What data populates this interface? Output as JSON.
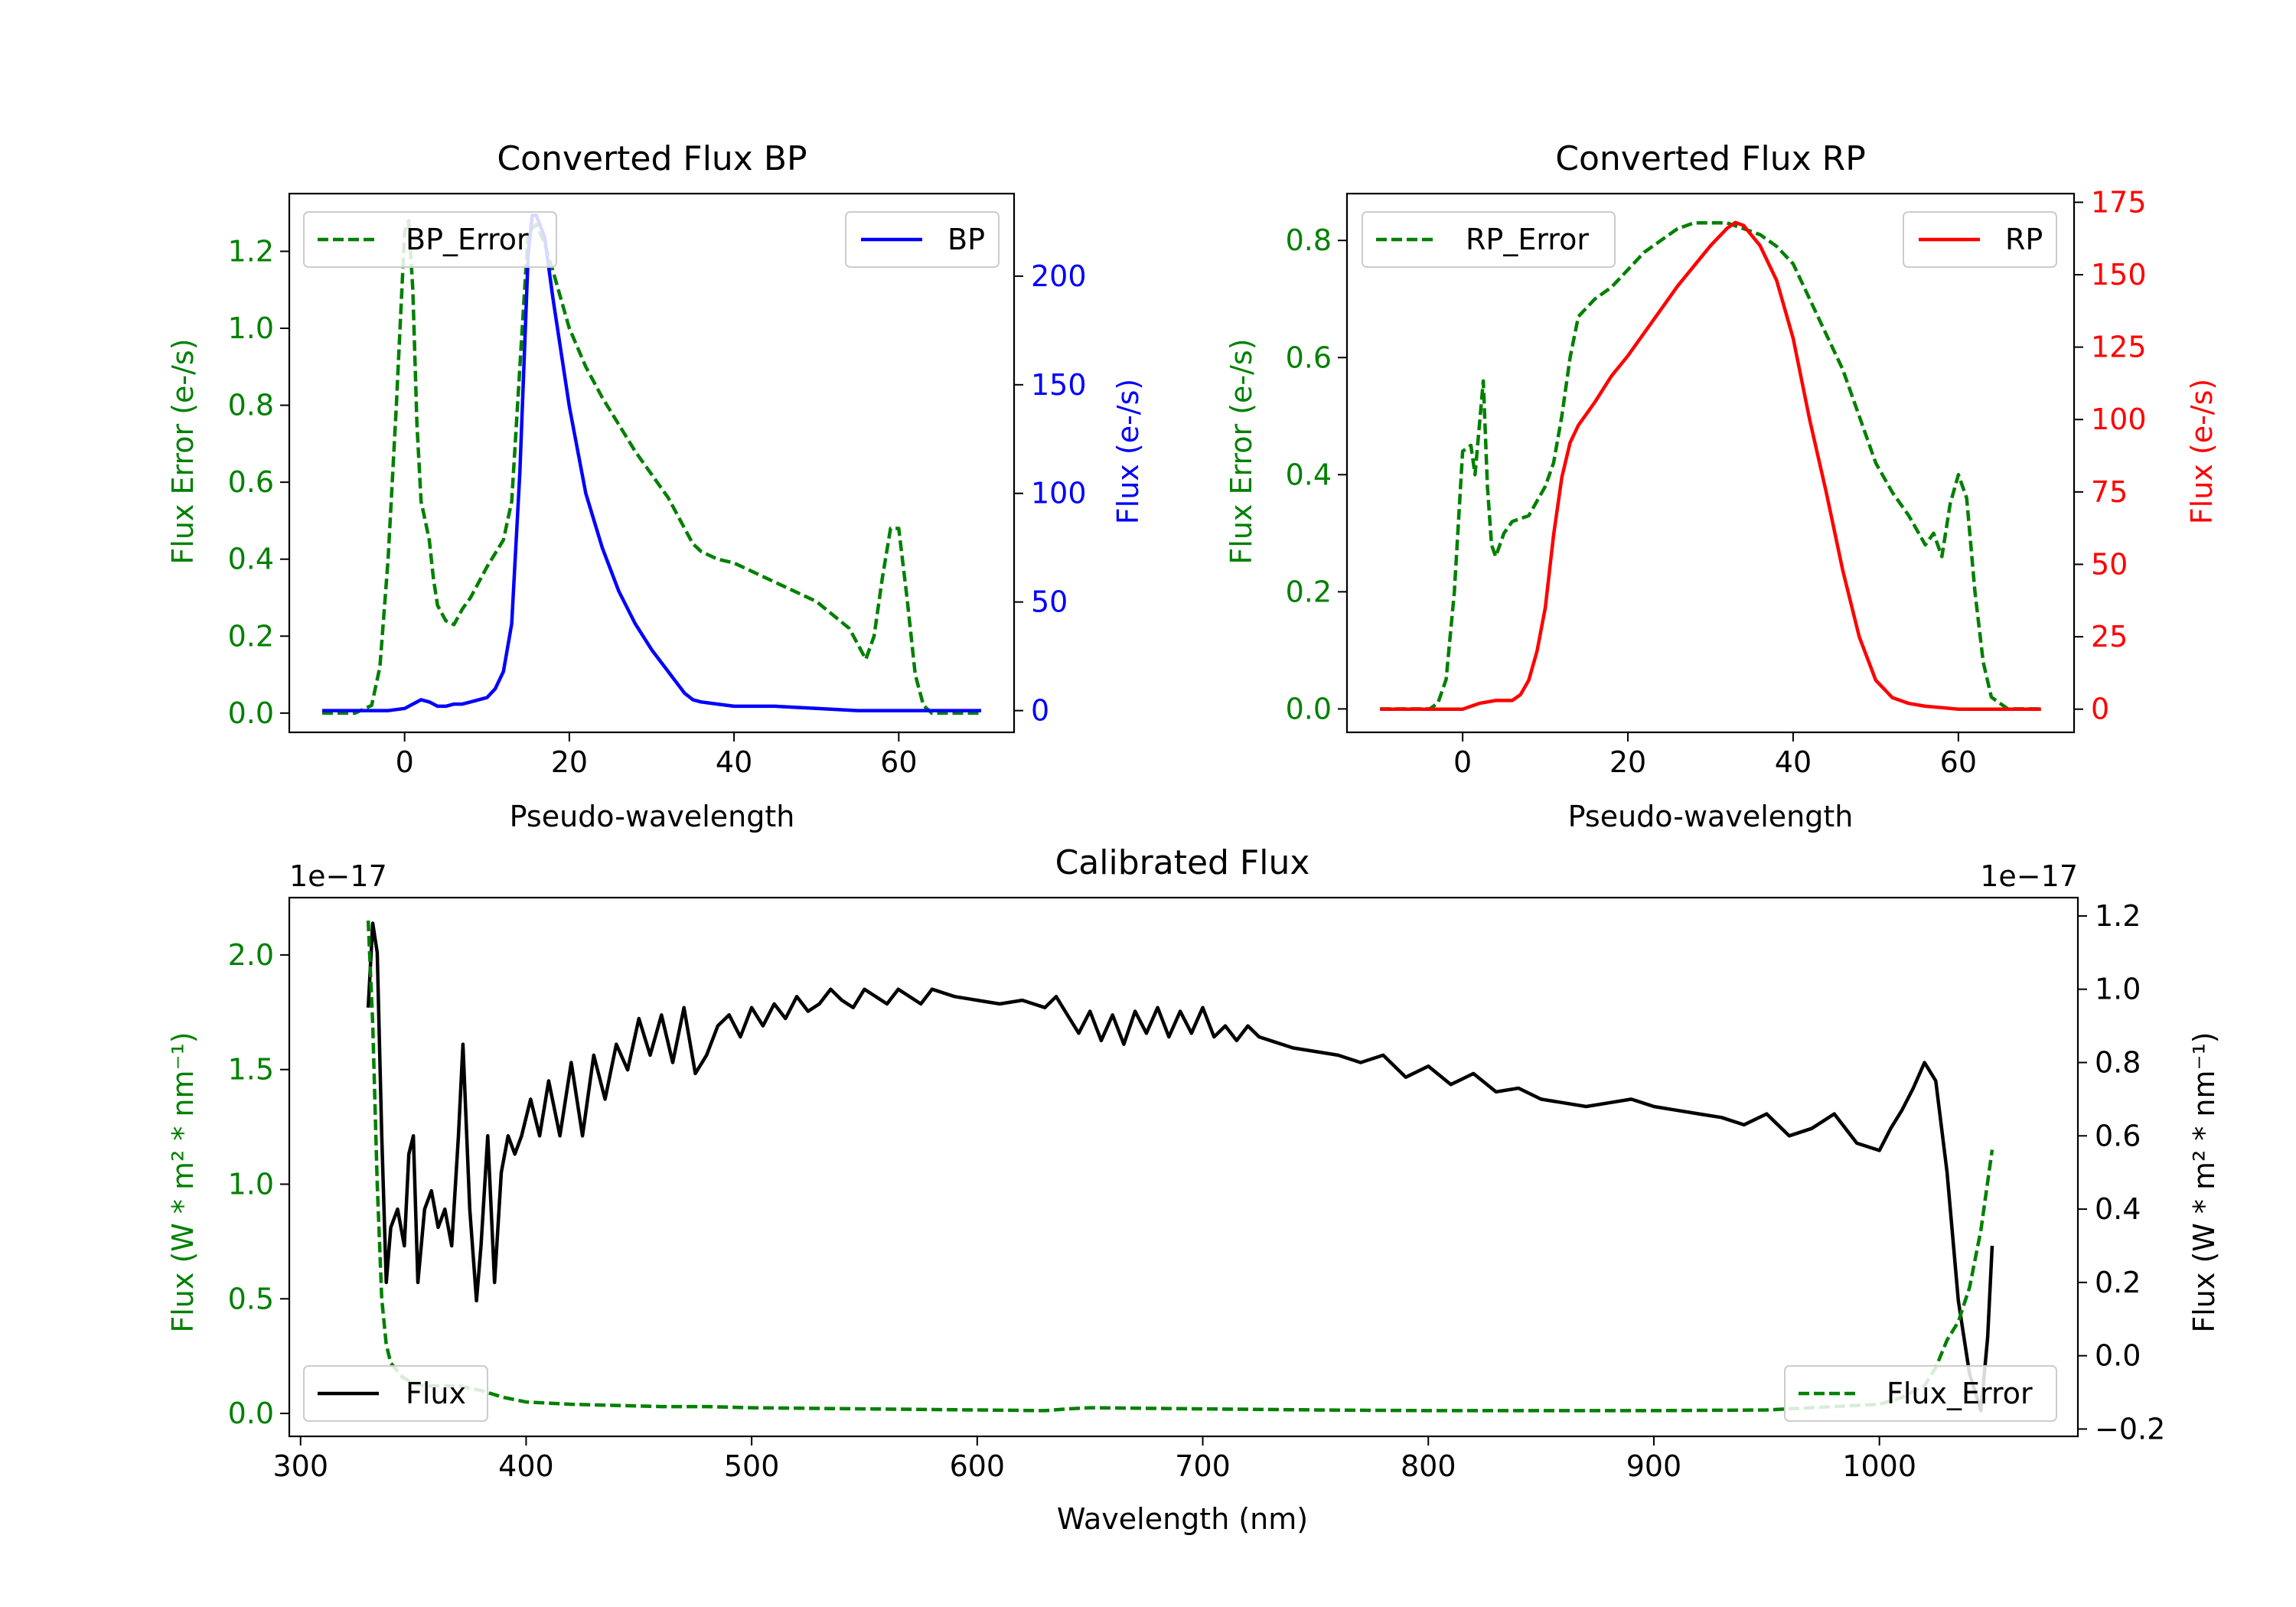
{
  "chart_data": [
    {
      "type": "line",
      "title": "Converted Flux BP",
      "xlabel": "Pseudo-wavelength",
      "xlim": [
        -14,
        74
      ],
      "x_ticks": [
        "0",
        "20",
        "40",
        "60"
      ],
      "left_axis": {
        "label": "Flux Error (e-/s)",
        "color": "#008000",
        "ylim": [
          -0.05,
          1.35
        ],
        "ticks": [
          "0.0",
          "0.2",
          "0.4",
          "0.6",
          "0.8",
          "1.0",
          "1.2"
        ]
      },
      "right_axis": {
        "label": "Flux (e-/s)",
        "color": "#0000ff",
        "ylim": [
          -10,
          238
        ],
        "ticks": [
          "0",
          "50",
          "100",
          "150",
          "200"
        ]
      },
      "legends": {
        "left": "BP_Error",
        "right": "BP"
      },
      "series": [
        {
          "name": "BP_Error",
          "axis": "left",
          "color": "#008000",
          "style": "dashed",
          "x": [
            -10,
            -8,
            -6,
            -4,
            -3,
            -2,
            -1,
            0,
            0.5,
            1,
            1.5,
            2,
            2.5,
            3,
            3.5,
            4,
            4.5,
            5,
            6,
            7,
            8,
            10,
            12,
            13,
            14,
            15,
            16,
            17,
            18,
            20,
            22,
            24,
            26,
            28,
            30,
            32,
            34,
            35,
            36,
            38,
            40,
            45,
            50,
            54,
            56,
            57,
            58,
            59,
            60,
            61,
            62,
            63,
            64,
            66,
            68,
            70
          ],
          "y": [
            0,
            0,
            0,
            0.02,
            0.12,
            0.4,
            0.8,
            1.25,
            1.28,
            1.1,
            0.75,
            0.55,
            0.5,
            0.45,
            0.35,
            0.28,
            0.26,
            0.24,
            0.23,
            0.27,
            0.3,
            0.38,
            0.45,
            0.55,
            0.9,
            1.25,
            1.27,
            1.22,
            1.15,
            1.0,
            0.9,
            0.82,
            0.75,
            0.68,
            0.62,
            0.56,
            0.48,
            0.44,
            0.42,
            0.4,
            0.39,
            0.34,
            0.29,
            0.22,
            0.14,
            0.2,
            0.35,
            0.48,
            0.48,
            0.3,
            0.1,
            0.02,
            0,
            0,
            0,
            0
          ]
        },
        {
          "name": "BP",
          "axis": "right",
          "color": "#0000ff",
          "style": "solid",
          "x": [
            -10,
            -5,
            -2,
            0,
            1,
            2,
            3,
            4,
            5,
            6,
            7,
            8,
            10,
            11,
            12,
            13,
            14,
            15,
            15.5,
            16,
            17,
            18,
            20,
            22,
            24,
            26,
            28,
            30,
            32,
            34,
            35,
            36,
            38,
            40,
            45,
            50,
            55,
            60,
            65,
            70
          ],
          "y": [
            0,
            0,
            0,
            1,
            3,
            5,
            4,
            2,
            2,
            3,
            3,
            4,
            6,
            10,
            18,
            40,
            110,
            210,
            228,
            228,
            218,
            190,
            140,
            100,
            75,
            55,
            40,
            28,
            18,
            8,
            5,
            4,
            3,
            2,
            2,
            1,
            0,
            0,
            0,
            0
          ]
        }
      ]
    },
    {
      "type": "line",
      "title": "Converted Flux RP",
      "xlabel": "Pseudo-wavelength",
      "xlim": [
        -14,
        74
      ],
      "x_ticks": [
        "0",
        "20",
        "40",
        "60"
      ],
      "left_axis": {
        "label": "Flux Error (e-/s)",
        "color": "#008000",
        "ylim": [
          -0.04,
          0.88
        ],
        "ticks": [
          "0.0",
          "0.2",
          "0.4",
          "0.6",
          "0.8"
        ]
      },
      "right_axis": {
        "label": "Flux (e-/s)",
        "color": "#ff0000",
        "ylim": [
          -8,
          178
        ],
        "ticks": [
          "0",
          "25",
          "50",
          "75",
          "100",
          "125",
          "150",
          "175"
        ]
      },
      "legends": {
        "left": "RP_Error",
        "right": "RP"
      },
      "series": [
        {
          "name": "RP_Error",
          "axis": "left",
          "color": "#008000",
          "style": "dashed",
          "x": [
            -10,
            -5,
            -4,
            -3,
            -2,
            -1,
            0,
            1,
            1.5,
            2,
            2.5,
            3,
            3.5,
            4,
            5,
            6,
            8,
            10,
            11,
            12,
            13,
            14,
            16,
            18,
            20,
            22,
            24,
            26,
            28,
            30,
            32,
            34,
            36,
            38,
            40,
            42,
            44,
            46,
            48,
            50,
            52,
            54,
            56,
            57,
            58,
            59,
            60,
            61,
            62,
            63,
            64,
            66,
            68,
            70
          ],
          "y": [
            0,
            0,
            0,
            0.01,
            0.05,
            0.2,
            0.44,
            0.45,
            0.4,
            0.48,
            0.56,
            0.38,
            0.28,
            0.26,
            0.3,
            0.32,
            0.33,
            0.38,
            0.42,
            0.5,
            0.6,
            0.67,
            0.7,
            0.72,
            0.75,
            0.78,
            0.8,
            0.82,
            0.83,
            0.83,
            0.83,
            0.82,
            0.81,
            0.79,
            0.76,
            0.7,
            0.64,
            0.58,
            0.5,
            0.42,
            0.37,
            0.33,
            0.28,
            0.3,
            0.26,
            0.35,
            0.4,
            0.36,
            0.2,
            0.08,
            0.02,
            0,
            0,
            0
          ]
        },
        {
          "name": "RP",
          "axis": "right",
          "color": "#ff0000",
          "style": "solid",
          "x": [
            -10,
            -5,
            -2,
            0,
            2,
            4,
            6,
            7,
            8,
            9,
            10,
            11,
            12,
            13,
            14,
            16,
            18,
            20,
            22,
            24,
            26,
            28,
            30,
            32,
            33,
            34,
            36,
            38,
            40,
            42,
            44,
            46,
            48,
            50,
            52,
            54,
            56,
            58,
            60,
            62,
            65,
            70
          ],
          "y": [
            0,
            0,
            0,
            0,
            2,
            3,
            3,
            5,
            10,
            20,
            35,
            60,
            80,
            92,
            98,
            106,
            115,
            122,
            130,
            138,
            146,
            153,
            160,
            166,
            168,
            167,
            160,
            148,
            128,
            100,
            75,
            48,
            25,
            10,
            4,
            2,
            1,
            0.5,
            0,
            0,
            0,
            0
          ]
        }
      ]
    },
    {
      "type": "line",
      "title": "Calibrated Flux",
      "xlabel": "Wavelength (nm)",
      "xlim": [
        295,
        1088
      ],
      "x_ticks": [
        "300",
        "400",
        "500",
        "600",
        "700",
        "800",
        "900",
        "1000"
      ],
      "left_axis": {
        "label": "Flux (W * m² * nm⁻¹)",
        "color": "#008000",
        "exponent": "1e−17",
        "ylim": [
          -0.1,
          2.25
        ],
        "ticks": [
          "0.0",
          "0.5",
          "1.0",
          "1.5",
          "2.0"
        ]
      },
      "right_axis": {
        "label": "Flux (W * m² * nm⁻¹)",
        "color": "#000000",
        "exponent": "1e−17",
        "ylim": [
          -0.22,
          1.25
        ],
        "ticks": [
          "−0.2",
          "0.0",
          "0.2",
          "0.4",
          "0.6",
          "0.8",
          "1.0",
          "1.2"
        ]
      },
      "legends": {
        "left": "Flux",
        "right": "Flux_Error"
      },
      "series": [
        {
          "name": "Flux",
          "axis": "right",
          "color": "#000000",
          "style": "solid",
          "x": [
            330,
            332,
            334,
            336,
            338,
            340,
            343,
            346,
            348,
            350,
            352,
            355,
            358,
            361,
            364,
            367,
            370,
            372,
            375,
            378,
            380,
            383,
            386,
            389,
            392,
            395,
            398,
            402,
            406,
            410,
            415,
            420,
            425,
            430,
            435,
            440,
            445,
            450,
            455,
            460,
            465,
            470,
            475,
            480,
            485,
            490,
            495,
            500,
            505,
            510,
            515,
            520,
            525,
            530,
            535,
            540,
            545,
            550,
            555,
            560,
            565,
            570,
            575,
            580,
            585,
            590,
            600,
            610,
            620,
            630,
            635,
            640,
            645,
            650,
            655,
            660,
            665,
            670,
            675,
            680,
            685,
            690,
            695,
            700,
            705,
            710,
            715,
            720,
            725,
            730,
            740,
            750,
            760,
            770,
            780,
            790,
            800,
            810,
            820,
            830,
            840,
            850,
            860,
            870,
            880,
            890,
            900,
            910,
            920,
            930,
            940,
            950,
            960,
            970,
            980,
            990,
            1000,
            1005,
            1010,
            1015,
            1020,
            1025,
            1030,
            1035,
            1040,
            1045,
            1048,
            1050
          ],
          "y": [
            0.95,
            1.18,
            1.1,
            0.6,
            0.2,
            0.35,
            0.4,
            0.3,
            0.55,
            0.6,
            0.2,
            0.4,
            0.45,
            0.35,
            0.4,
            0.3,
            0.6,
            0.85,
            0.4,
            0.15,
            0.3,
            0.6,
            0.2,
            0.5,
            0.6,
            0.55,
            0.6,
            0.7,
            0.6,
            0.75,
            0.6,
            0.8,
            0.6,
            0.82,
            0.7,
            0.85,
            0.78,
            0.92,
            0.82,
            0.93,
            0.8,
            0.95,
            0.77,
            0.82,
            0.9,
            0.93,
            0.87,
            0.95,
            0.9,
            0.96,
            0.92,
            0.98,
            0.94,
            0.96,
            1.0,
            0.97,
            0.95,
            1.0,
            0.98,
            0.96,
            1.0,
            0.98,
            0.96,
            1.0,
            0.99,
            0.98,
            0.97,
            0.96,
            0.97,
            0.95,
            0.98,
            0.93,
            0.88,
            0.94,
            0.86,
            0.93,
            0.85,
            0.94,
            0.88,
            0.95,
            0.87,
            0.94,
            0.88,
            0.95,
            0.87,
            0.9,
            0.86,
            0.9,
            0.87,
            0.86,
            0.84,
            0.83,
            0.82,
            0.8,
            0.82,
            0.76,
            0.79,
            0.74,
            0.77,
            0.72,
            0.73,
            0.7,
            0.69,
            0.68,
            0.69,
            0.7,
            0.68,
            0.67,
            0.66,
            0.65,
            0.63,
            0.66,
            0.6,
            0.62,
            0.66,
            0.58,
            0.56,
            0.62,
            0.67,
            0.73,
            0.8,
            0.75,
            0.5,
            0.15,
            -0.05,
            -0.15,
            0.05,
            0.3
          ]
        },
        {
          "name": "Flux_Error",
          "axis": "left",
          "color": "#008000",
          "style": "dashed",
          "x": [
            330,
            332,
            334,
            336,
            338,
            340,
            345,
            350,
            355,
            360,
            370,
            380,
            390,
            400,
            420,
            440,
            460,
            480,
            500,
            550,
            600,
            630,
            640,
            650,
            700,
            750,
            800,
            850,
            900,
            950,
            1000,
            1010,
            1020,
            1025,
            1030,
            1035,
            1040,
            1045,
            1050
          ],
          "y": [
            2.15,
            1.7,
            1.0,
            0.5,
            0.3,
            0.22,
            0.16,
            0.13,
            0.12,
            0.12,
            0.12,
            0.1,
            0.07,
            0.05,
            0.04,
            0.035,
            0.03,
            0.03,
            0.025,
            0.02,
            0.015,
            0.012,
            0.02,
            0.025,
            0.02,
            0.015,
            0.012,
            0.012,
            0.012,
            0.015,
            0.04,
            0.07,
            0.12,
            0.2,
            0.32,
            0.4,
            0.55,
            0.8,
            1.15
          ]
        }
      ]
    }
  ]
}
